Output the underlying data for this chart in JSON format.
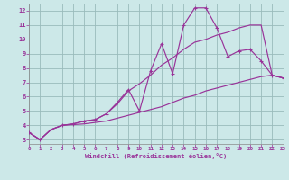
{
  "background_color": "#cce8e8",
  "grid_color": "#99bbbb",
  "line_color": "#993399",
  "ylim": [
    2.7,
    12.5
  ],
  "xlim": [
    0,
    23
  ],
  "yticks": [
    3,
    4,
    5,
    6,
    7,
    8,
    9,
    10,
    11,
    12
  ],
  "xticks": [
    0,
    1,
    2,
    3,
    4,
    5,
    6,
    7,
    8,
    9,
    10,
    11,
    12,
    13,
    14,
    15,
    16,
    17,
    18,
    19,
    20,
    21,
    22,
    23
  ],
  "xlabel": "Windchill (Refroidissement éolien,°C)",
  "line1_x": [
    0,
    1,
    2,
    3,
    4,
    5,
    6,
    7,
    8,
    9,
    10,
    11,
    12,
    13,
    14,
    15,
    16,
    17,
    18,
    19,
    20,
    21,
    22,
    23
  ],
  "line1_y": [
    3.5,
    3.0,
    3.7,
    4.0,
    4.1,
    4.3,
    4.4,
    4.8,
    5.6,
    6.5,
    5.0,
    7.8,
    9.7,
    7.6,
    11.0,
    12.2,
    12.2,
    10.8,
    8.8,
    9.2,
    9.3,
    8.5,
    7.5,
    7.3
  ],
  "line2_x": [
    0,
    1,
    2,
    3,
    4,
    5,
    6,
    7,
    8,
    9,
    10,
    11,
    12,
    13,
    14,
    15,
    16,
    17,
    18,
    19,
    20,
    21,
    22,
    23
  ],
  "line2_y": [
    3.5,
    3.0,
    3.7,
    4.0,
    4.1,
    4.3,
    4.4,
    4.8,
    5.5,
    6.4,
    6.9,
    7.5,
    8.2,
    8.7,
    9.3,
    9.8,
    10.0,
    10.3,
    10.5,
    10.8,
    11.0,
    11.0,
    7.5,
    7.3
  ],
  "line3_x": [
    0,
    1,
    2,
    3,
    4,
    5,
    6,
    7,
    8,
    9,
    10,
    11,
    12,
    13,
    14,
    15,
    16,
    17,
    18,
    19,
    20,
    21,
    22,
    23
  ],
  "line3_y": [
    3.5,
    3.0,
    3.7,
    4.0,
    4.05,
    4.1,
    4.2,
    4.3,
    4.5,
    4.7,
    4.9,
    5.1,
    5.3,
    5.6,
    5.9,
    6.1,
    6.4,
    6.6,
    6.8,
    7.0,
    7.2,
    7.4,
    7.5,
    7.3
  ]
}
